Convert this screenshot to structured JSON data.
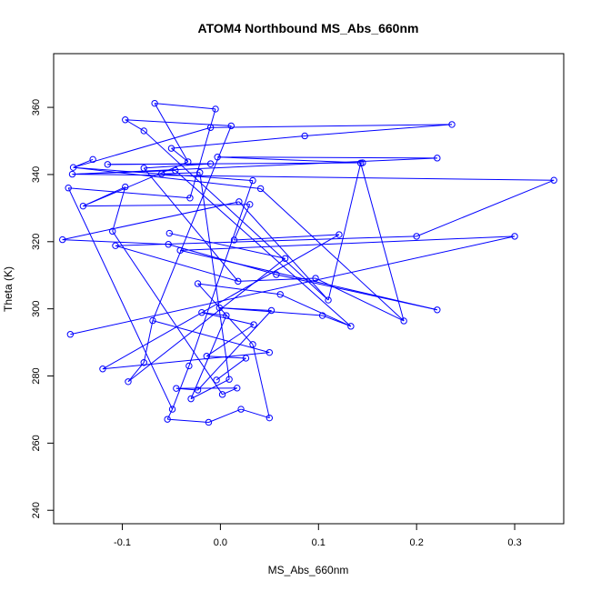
{
  "chart_data": {
    "type": "line",
    "title": "ATOM4 Northbound MS_Abs_660nm",
    "xlabel": "MS_Abs_660nm",
    "ylabel": "Theta (K)",
    "xlim": [
      -0.17,
      0.35
    ],
    "ylim": [
      236,
      376
    ],
    "x_ticks": [
      -0.1,
      0.0,
      0.1,
      0.2,
      0.3
    ],
    "x_tick_labels": [
      "-0.1",
      "0.0",
      "0.1",
      "0.2",
      "0.3"
    ],
    "y_ticks": [
      240,
      260,
      280,
      300,
      320,
      340,
      360
    ],
    "y_tick_labels": [
      "240",
      "260",
      "280",
      "300",
      "320",
      "340",
      "360"
    ],
    "grid": false,
    "series": [
      {
        "color": "#0000ff",
        "marker": "open-circle",
        "points": [
          [
            -0.067,
            361.2
          ],
          [
            -0.005,
            359.5
          ],
          [
            -0.097,
            356.3
          ],
          [
            -0.078,
            353.0
          ],
          [
            -0.13,
            344.5
          ],
          [
            -0.15,
            342.1
          ],
          [
            0.033,
            338.2
          ],
          [
            0.041,
            335.8
          ],
          [
            -0.01,
            354.0
          ],
          [
            0.011,
            354.5
          ],
          [
            0.236,
            354.9
          ],
          [
            0.086,
            351.5
          ],
          [
            -0.05,
            347.8
          ],
          [
            -0.033,
            343.8
          ],
          [
            -0.01,
            343.2
          ],
          [
            -0.115,
            343.0
          ],
          [
            -0.078,
            341.9
          ],
          [
            0.145,
            343.5
          ],
          [
            -0.003,
            345.2
          ],
          [
            0.221,
            344.9
          ],
          [
            -0.151,
            340.1
          ],
          [
            -0.046,
            341.2
          ],
          [
            0.34,
            338.3
          ],
          [
            0.2,
            321.6
          ],
          [
            -0.155,
            336.0
          ],
          [
            -0.031,
            333.0
          ],
          [
            -0.097,
            336.3
          ],
          [
            -0.11,
            323.1
          ],
          [
            -0.14,
            330.6
          ],
          [
            0.03,
            331.1
          ],
          [
            0.014,
            320.5
          ],
          [
            0.121,
            322.1
          ],
          [
            -0.052,
            322.5
          ],
          [
            0.066,
            315.0
          ],
          [
            -0.06,
            340.2
          ],
          [
            -0.021,
            340.6
          ],
          [
            -0.161,
            320.6
          ],
          [
            -0.053,
            319.2
          ],
          [
            0.057,
            310.2
          ],
          [
            0.221,
            299.7
          ],
          [
            -0.041,
            317.4
          ],
          [
            0.3,
            321.6
          ],
          [
            -0.153,
            292.4
          ],
          [
            -0.107,
            318.8
          ],
          [
            0.018,
            308.2
          ],
          [
            0.097,
            309.1
          ],
          [
            0.187,
            296.4
          ],
          [
            0.143,
            343.4
          ],
          [
            0.11,
            302.6
          ],
          [
            0.019,
            331.9
          ],
          [
            -0.094,
            278.3
          ],
          [
            -0.078,
            284.0
          ],
          [
            -0.069,
            296.5
          ],
          [
            0.05,
            287.0
          ],
          [
            -0.12,
            282.1
          ],
          [
            -0.032,
            283.0
          ],
          [
            -0.049,
            270.1
          ],
          [
            -0.054,
            267.1
          ],
          [
            -0.012,
            266.2
          ],
          [
            0.021,
            270.1
          ],
          [
            0.05,
            267.5
          ],
          [
            0.033,
            289.4
          ],
          [
            -0.023,
            307.5
          ],
          [
            0.061,
            304.3
          ],
          [
            0.133,
            294.8
          ],
          [
            0.104,
            298.0
          ],
          [
            -0.001,
            300.3
          ],
          [
            0.052,
            299.5
          ],
          [
            -0.023,
            275.8
          ],
          [
            -0.045,
            276.3
          ],
          [
            0.017,
            276.4
          ],
          [
            0.002,
            274.5
          ],
          [
            0.009,
            279.0
          ],
          [
            -0.03,
            273.2
          ],
          [
            0.006,
            298.0
          ],
          [
            -0.019,
            298.9
          ],
          [
            0.034,
            295.3
          ],
          [
            -0.014,
            285.9
          ],
          [
            0.026,
            285.3
          ],
          [
            -0.004,
            278.8
          ]
        ],
        "segments": [
          [
            0,
            1
          ],
          [
            0,
            13
          ],
          [
            2,
            3
          ],
          [
            2,
            9
          ],
          [
            4,
            5
          ],
          [
            5,
            6
          ],
          [
            5,
            7
          ],
          [
            5,
            8
          ],
          [
            8,
            10
          ],
          [
            10,
            11
          ],
          [
            11,
            12
          ],
          [
            12,
            13
          ],
          [
            14,
            15
          ],
          [
            14,
            16
          ],
          [
            15,
            17
          ],
          [
            17,
            18
          ],
          [
            18,
            19
          ],
          [
            19,
            20
          ],
          [
            20,
            21
          ],
          [
            20,
            22
          ],
          [
            22,
            23
          ],
          [
            24,
            25
          ],
          [
            26,
            27
          ],
          [
            26,
            28
          ],
          [
            28,
            29
          ],
          [
            29,
            30
          ],
          [
            30,
            31
          ],
          [
            32,
            33
          ],
          [
            34,
            35
          ],
          [
            36,
            37
          ],
          [
            37,
            38
          ],
          [
            38,
            39
          ],
          [
            39,
            40
          ],
          [
            40,
            41
          ],
          [
            41,
            42
          ],
          [
            43,
            44
          ],
          [
            44,
            45
          ],
          [
            45,
            46
          ],
          [
            46,
            47
          ],
          [
            47,
            48
          ],
          [
            48,
            49
          ],
          [
            50,
            51
          ],
          [
            51,
            52
          ],
          [
            52,
            53
          ],
          [
            53,
            54
          ],
          [
            55,
            56
          ],
          [
            56,
            57
          ],
          [
            57,
            58
          ],
          [
            58,
            59
          ],
          [
            59,
            60
          ],
          [
            60,
            61
          ],
          [
            61,
            62
          ],
          [
            62,
            63
          ],
          [
            63,
            64
          ],
          [
            64,
            65
          ],
          [
            65,
            66
          ],
          [
            66,
            67
          ],
          [
            67,
            68
          ],
          [
            68,
            69
          ],
          [
            69,
            70
          ],
          [
            70,
            71
          ],
          [
            72,
            73
          ],
          [
            73,
            74
          ],
          [
            74,
            75
          ],
          [
            75,
            76
          ],
          [
            76,
            77
          ],
          [
            77,
            78
          ],
          [
            78,
            79
          ],
          [
            33,
            50
          ],
          [
            27,
            71
          ],
          [
            21,
            64
          ],
          [
            36,
            49
          ],
          [
            6,
            55
          ],
          [
            13,
            28
          ],
          [
            1,
            25
          ],
          [
            16,
            44
          ],
          [
            7,
            46
          ],
          [
            9,
            52
          ],
          [
            31,
            54
          ],
          [
            24,
            56
          ],
          [
            3,
            48
          ],
          [
            35,
            72
          ],
          [
            23,
            43
          ]
        ]
      }
    ]
  }
}
